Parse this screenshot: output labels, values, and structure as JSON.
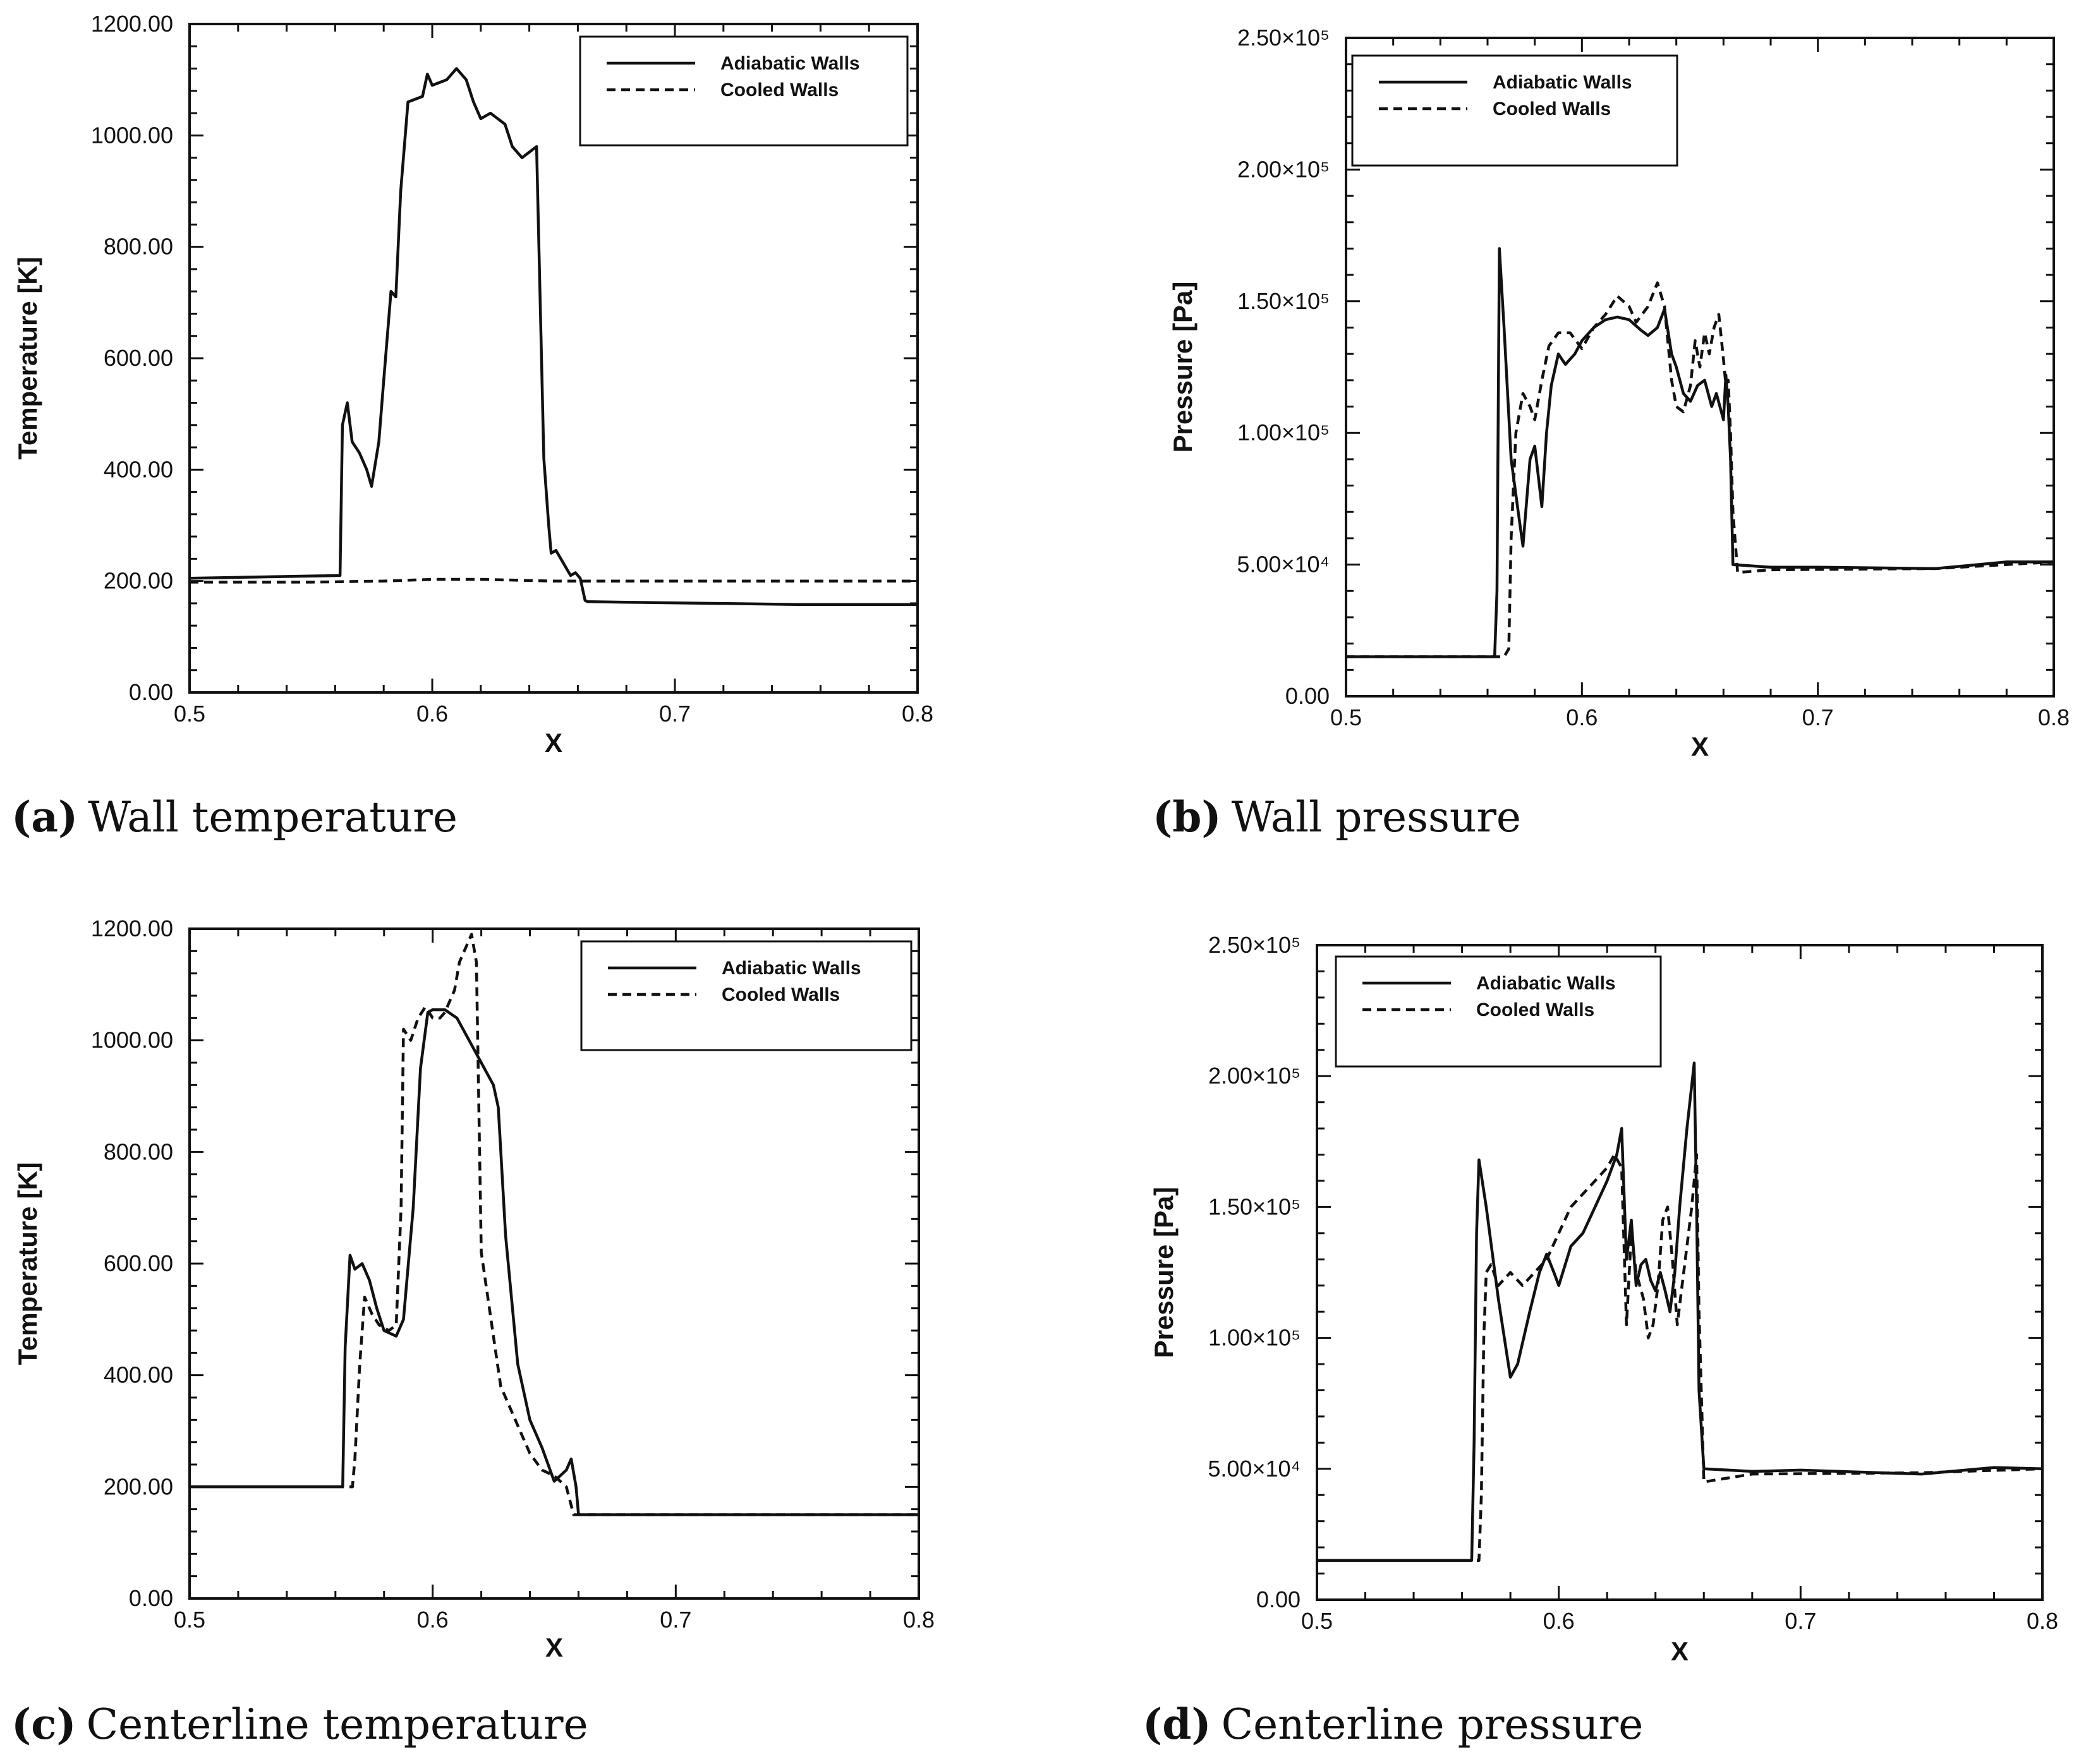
{
  "chart_data": [
    {
      "type": "line",
      "panel": "a",
      "caption_label": "(a)",
      "caption_text": "Wall temperature",
      "xlabel": "X",
      "ylabel": "Temperature [K]",
      "xlim": [
        0.5,
        0.8
      ],
      "ylim": [
        0,
        1200
      ],
      "xticks": [
        {
          "v": 0.5,
          "t": "0.5"
        },
        {
          "v": 0.6,
          "t": "0.6"
        },
        {
          "v": 0.7,
          "t": "0.7"
        },
        {
          "v": 0.8,
          "t": "0.8"
        }
      ],
      "yticks": [
        {
          "v": 0,
          "t": "0.00"
        },
        {
          "v": 200,
          "t": "200.00"
        },
        {
          "v": 400,
          "t": "400.00"
        },
        {
          "v": 600,
          "t": "600.00"
        },
        {
          "v": 800,
          "t": "800.00"
        },
        {
          "v": 1000,
          "t": "1000.00"
        },
        {
          "v": 1200,
          "t": "1200.00"
        }
      ],
      "legend_position": "top-right",
      "series": [
        {
          "name": "Adiabatic Walls",
          "style": "solid",
          "x": [
            0.5,
            0.562,
            0.563,
            0.565,
            0.567,
            0.57,
            0.573,
            0.575,
            0.578,
            0.58,
            0.583,
            0.585,
            0.587,
            0.59,
            0.593,
            0.596,
            0.598,
            0.6,
            0.603,
            0.606,
            0.61,
            0.614,
            0.617,
            0.62,
            0.624,
            0.627,
            0.63,
            0.633,
            0.637,
            0.64,
            0.643,
            0.646,
            0.648,
            0.649,
            0.651,
            0.653,
            0.655,
            0.657,
            0.659,
            0.661,
            0.663,
            0.664,
            0.68,
            0.75,
            0.8
          ],
          "y": [
            205,
            210,
            480,
            520,
            450,
            430,
            400,
            370,
            450,
            560,
            720,
            710,
            900,
            1060,
            1065,
            1070,
            1110,
            1090,
            1095,
            1100,
            1120,
            1100,
            1060,
            1030,
            1040,
            1030,
            1020,
            980,
            960,
            970,
            980,
            420,
            300,
            250,
            255,
            240,
            225,
            210,
            215,
            205,
            165,
            163,
            162,
            158,
            158
          ]
        },
        {
          "name": "Cooled Walls",
          "style": "dashed",
          "x": [
            0.5,
            0.55,
            0.58,
            0.6,
            0.62,
            0.65,
            0.66,
            0.7,
            0.8
          ],
          "y": [
            198,
            198,
            200,
            203,
            203,
            200,
            200,
            200,
            200
          ]
        }
      ]
    },
    {
      "type": "line",
      "panel": "b",
      "caption_label": "(b)",
      "caption_text": "Wall pressure",
      "xlabel": "X",
      "ylabel": "Pressure [Pa]",
      "xlim": [
        0.5,
        0.8
      ],
      "ylim": [
        0,
        250000
      ],
      "xticks": [
        {
          "v": 0.5,
          "t": "0.5"
        },
        {
          "v": 0.6,
          "t": "0.6"
        },
        {
          "v": 0.7,
          "t": "0.7"
        },
        {
          "v": 0.8,
          "t": "0.8"
        }
      ],
      "yticks": [
        {
          "v": 0,
          "t": "0.00"
        },
        {
          "v": 50000,
          "t": "5.00×10⁴"
        },
        {
          "v": 100000,
          "t": "1.00×10⁵"
        },
        {
          "v": 150000,
          "t": "1.50×10⁵"
        },
        {
          "v": 200000,
          "t": "2.00×10⁵"
        },
        {
          "v": 250000,
          "t": "2.50×10⁵"
        }
      ],
      "legend_position": "top-left",
      "series": [
        {
          "name": "Adiabatic Walls",
          "style": "solid",
          "x": [
            0.5,
            0.563,
            0.564,
            0.565,
            0.567,
            0.57,
            0.573,
            0.575,
            0.578,
            0.58,
            0.583,
            0.585,
            0.587,
            0.59,
            0.593,
            0.597,
            0.6,
            0.605,
            0.61,
            0.615,
            0.62,
            0.625,
            0.628,
            0.632,
            0.635,
            0.638,
            0.64,
            0.643,
            0.646,
            0.649,
            0.652,
            0.655,
            0.657,
            0.66,
            0.661,
            0.662,
            0.663,
            0.664,
            0.68,
            0.7,
            0.75,
            0.78,
            0.8
          ],
          "y": [
            15000,
            15000,
            40000,
            170000,
            140000,
            90000,
            70000,
            57000,
            90000,
            95000,
            72000,
            100000,
            118000,
            130000,
            126000,
            130000,
            135000,
            140000,
            143000,
            144000,
            143000,
            139000,
            137000,
            140000,
            147000,
            130000,
            125000,
            115000,
            112000,
            118000,
            120000,
            110000,
            115000,
            105000,
            122000,
            110000,
            90000,
            50000,
            49000,
            49000,
            48500,
            51000,
            51000
          ]
        },
        {
          "name": "Cooled Walls",
          "style": "dashed",
          "x": [
            0.5,
            0.565,
            0.567,
            0.569,
            0.57,
            0.572,
            0.575,
            0.578,
            0.58,
            0.583,
            0.586,
            0.59,
            0.595,
            0.6,
            0.605,
            0.61,
            0.615,
            0.62,
            0.623,
            0.628,
            0.632,
            0.635,
            0.638,
            0.64,
            0.643,
            0.646,
            0.648,
            0.65,
            0.652,
            0.654,
            0.656,
            0.658,
            0.66,
            0.661,
            0.662,
            0.663,
            0.664,
            0.666,
            0.68,
            0.75,
            0.8
          ],
          "y": [
            15000,
            15000,
            15000,
            18000,
            60000,
            100000,
            115000,
            110000,
            105000,
            120000,
            133000,
            138000,
            138000,
            132000,
            140000,
            145000,
            152000,
            148000,
            142000,
            148000,
            157000,
            148000,
            120000,
            110000,
            108000,
            118000,
            135000,
            125000,
            138000,
            130000,
            140000,
            145000,
            128000,
            118000,
            120000,
            100000,
            70000,
            47000,
            48000,
            48500,
            51000
          ]
        }
      ]
    },
    {
      "type": "line",
      "panel": "c",
      "caption_label": "(c)",
      "caption_text": "Centerline temperature",
      "xlabel": "X",
      "ylabel": "Temperature [K]",
      "xlim": [
        0.5,
        0.8
      ],
      "ylim": [
        0,
        1200
      ],
      "xticks": [
        {
          "v": 0.5,
          "t": "0.5"
        },
        {
          "v": 0.6,
          "t": "0.6"
        },
        {
          "v": 0.7,
          "t": "0.7"
        },
        {
          "v": 0.8,
          "t": "0.8"
        }
      ],
      "yticks": [
        {
          "v": 0,
          "t": "0.00"
        },
        {
          "v": 200,
          "t": "200.00"
        },
        {
          "v": 400,
          "t": "400.00"
        },
        {
          "v": 600,
          "t": "600.00"
        },
        {
          "v": 800,
          "t": "800.00"
        },
        {
          "v": 1000,
          "t": "1000.00"
        },
        {
          "v": 1200,
          "t": "1200.00"
        }
      ],
      "legend_position": "top-right",
      "series": [
        {
          "name": "Adiabatic Walls",
          "style": "solid",
          "x": [
            0.5,
            0.563,
            0.564,
            0.566,
            0.568,
            0.571,
            0.574,
            0.577,
            0.58,
            0.585,
            0.588,
            0.592,
            0.595,
            0.598,
            0.6,
            0.605,
            0.61,
            0.615,
            0.62,
            0.625,
            0.627,
            0.63,
            0.635,
            0.64,
            0.645,
            0.65,
            0.655,
            0.657,
            0.659,
            0.66,
            0.7,
            0.8
          ],
          "y": [
            200,
            200,
            450,
            615,
            590,
            600,
            570,
            520,
            480,
            470,
            500,
            700,
            950,
            1050,
            1055,
            1055,
            1040,
            1000,
            960,
            920,
            880,
            650,
            420,
            320,
            270,
            210,
            230,
            250,
            200,
            150,
            150,
            150
          ]
        },
        {
          "name": "Cooled Walls",
          "style": "dashed",
          "x": [
            0.5,
            0.567,
            0.568,
            0.57,
            0.572,
            0.575,
            0.578,
            0.582,
            0.585,
            0.587,
            0.588,
            0.591,
            0.594,
            0.597,
            0.6,
            0.603,
            0.605,
            0.609,
            0.611,
            0.614,
            0.616,
            0.618,
            0.62,
            0.622,
            0.625,
            0.628,
            0.632,
            0.636,
            0.64,
            0.645,
            0.65,
            0.655,
            0.658,
            0.66,
            0.7,
            0.8
          ],
          "y": [
            200,
            200,
            250,
            420,
            540,
            510,
            490,
            480,
            490,
            700,
            1020,
            1000,
            1040,
            1060,
            1040,
            1040,
            1050,
            1090,
            1140,
            1170,
            1190,
            1140,
            620,
            560,
            470,
            380,
            340,
            300,
            260,
            230,
            220,
            200,
            150,
            150,
            150,
            150
          ]
        }
      ]
    },
    {
      "type": "line",
      "panel": "d",
      "caption_label": "(d)",
      "caption_text": "Centerline pressure",
      "xlabel": "X",
      "ylabel": "Pressure [Pa]",
      "xlim": [
        0.5,
        0.8
      ],
      "ylim": [
        0,
        250000
      ],
      "xticks": [
        {
          "v": 0.5,
          "t": "0.5"
        },
        {
          "v": 0.6,
          "t": "0.6"
        },
        {
          "v": 0.7,
          "t": "0.7"
        },
        {
          "v": 0.8,
          "t": "0.8"
        }
      ],
      "yticks": [
        {
          "v": 0,
          "t": "0.00"
        },
        {
          "v": 50000,
          "t": "5.00×10⁴"
        },
        {
          "v": 100000,
          "t": "1.00×10⁵"
        },
        {
          "v": 150000,
          "t": "1.50×10⁵"
        },
        {
          "v": 200000,
          "t": "2.00×10⁵"
        },
        {
          "v": 250000,
          "t": "2.50×10⁵"
        }
      ],
      "legend_position": "top-left",
      "series": [
        {
          "name": "Adiabatic Walls",
          "style": "solid",
          "x": [
            0.5,
            0.564,
            0.565,
            0.566,
            0.567,
            0.57,
            0.575,
            0.58,
            0.583,
            0.588,
            0.592,
            0.595,
            0.598,
            0.6,
            0.605,
            0.61,
            0.615,
            0.62,
            0.624,
            0.626,
            0.628,
            0.63,
            0.632,
            0.634,
            0.636,
            0.638,
            0.64,
            0.642,
            0.644,
            0.646,
            0.648,
            0.65,
            0.653,
            0.656,
            0.657,
            0.658,
            0.66,
            0.68,
            0.7,
            0.75,
            0.78,
            0.8
          ],
          "y": [
            15000,
            15000,
            60000,
            140000,
            168000,
            150000,
            115000,
            85000,
            90000,
            110000,
            125000,
            132000,
            125000,
            120000,
            135000,
            140000,
            150000,
            160000,
            170000,
            180000,
            130000,
            145000,
            120000,
            128000,
            130000,
            122000,
            118000,
            125000,
            118000,
            110000,
            125000,
            150000,
            180000,
            205000,
            150000,
            80000,
            50000,
            49000,
            49500,
            48000,
            50500,
            50000
          ]
        },
        {
          "name": "Cooled Walls",
          "style": "dashed",
          "x": [
            0.5,
            0.567,
            0.568,
            0.569,
            0.57,
            0.572,
            0.575,
            0.58,
            0.585,
            0.59,
            0.595,
            0.6,
            0.605,
            0.61,
            0.615,
            0.62,
            0.623,
            0.626,
            0.628,
            0.63,
            0.632,
            0.635,
            0.637,
            0.639,
            0.641,
            0.643,
            0.645,
            0.647,
            0.649,
            0.651,
            0.653,
            0.655,
            0.657,
            0.658,
            0.66,
            0.68,
            0.75,
            0.8
          ],
          "y": [
            15000,
            15000,
            40000,
            100000,
            125000,
            128000,
            120000,
            125000,
            120000,
            125000,
            130000,
            140000,
            150000,
            155000,
            160000,
            165000,
            170000,
            165000,
            105000,
            140000,
            125000,
            115000,
            100000,
            105000,
            120000,
            145000,
            150000,
            130000,
            105000,
            120000,
            135000,
            150000,
            170000,
            110000,
            45000,
            48000,
            48500,
            50000
          ]
        }
      ]
    }
  ]
}
